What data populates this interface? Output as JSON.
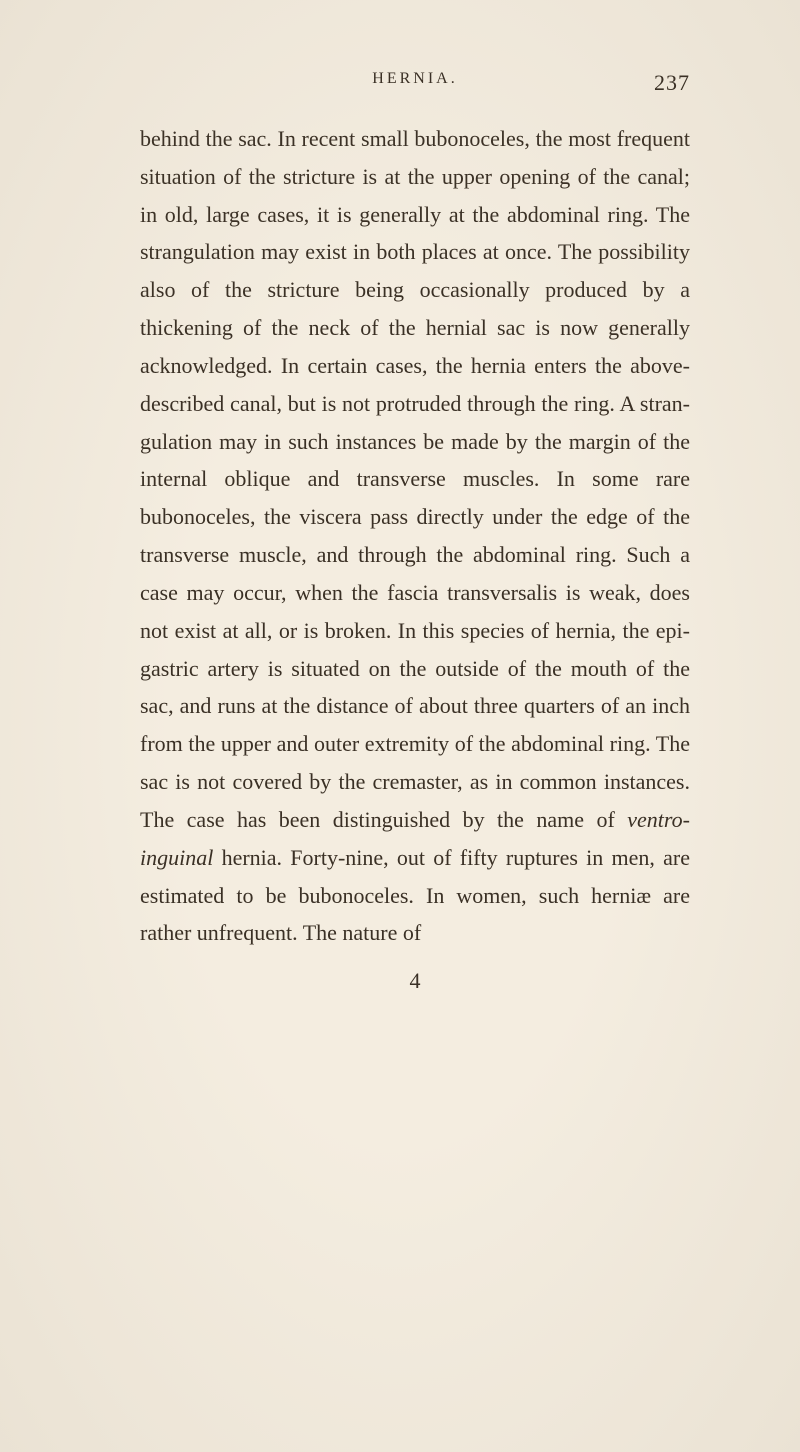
{
  "header": {
    "running_head": "HERNIA.",
    "page_number": "237"
  },
  "body": {
    "paragraph": "behind the sac.  In recent small bubonoceles, the most frequent situation of the stricture is at the upper opening of the canal; in old, large cases, it is generally at the abdominal ring.  The strangulation may exist in both places at once.  The possibility also of the stricture being occasionally produced by a thickening of the neck of the hernial sac is now generally acknowledged.  In certain cases, the hernia enters the above-described canal, but is not protruded through the ring.  A stran­gulation may in such instances be made by the margin of the internal oblique and trans­verse muscles.  In some rare bubonoceles, the viscera pass directly under the edge of the transverse muscle, and through the abdominal ring.  Such a case may occur, when the fascia transversalis is weak, does not exist at all, or is broken.  In this species of hernia, the epi­gastric artery is situated on the outside of the mouth of the sac, and runs at the distance of about three quarters of an inch from the upper and outer extremity of the abdominal ring.  The sac is not covered by the cremaster, as in common instances.  The case has been distin­guished by the name of ",
    "italic_term": "ventro-inguinal",
    "paragraph_after": " hernia. Forty-nine, out of fifty ruptures in men, are estimated to be bubonoceles.  In women, such herniæ are rather unfrequent.  The nature of"
  },
  "signature": "4",
  "style": {
    "background_color": "#f4ede0",
    "text_color": "#3a3025",
    "body_fontsize": 22,
    "header_fontsize": 16,
    "line_height": 1.72
  }
}
